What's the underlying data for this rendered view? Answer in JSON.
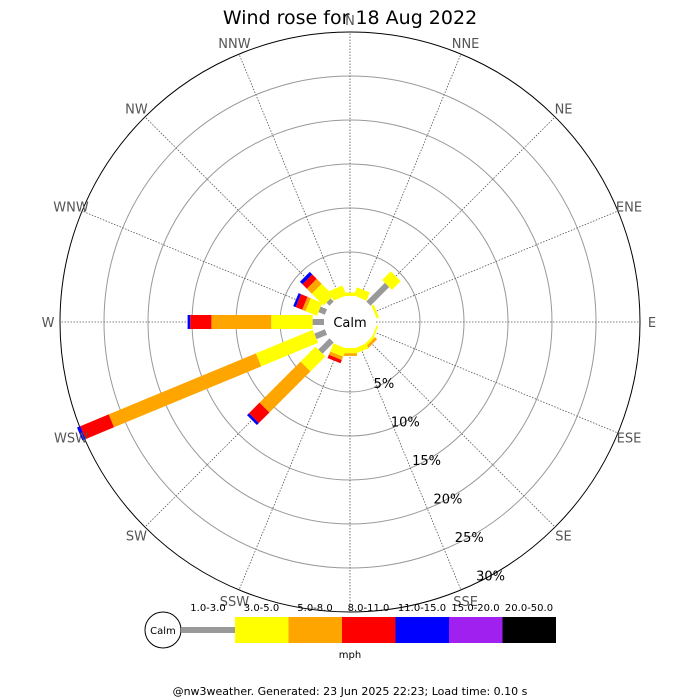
{
  "chart_data": {
    "type": "wind-rose",
    "title": "Wind rose for 18 Aug 2022",
    "center_label": "Calm",
    "directions": [
      "N",
      "NNE",
      "NE",
      "ENE",
      "E",
      "ESE",
      "SE",
      "SSE",
      "S",
      "SSW",
      "SW",
      "WSW",
      "W",
      "WNW",
      "NW",
      "NNW"
    ],
    "ring_labels": [
      "5%",
      "10%",
      "15%",
      "20%",
      "25%",
      "30%"
    ],
    "rmax_percent": 30,
    "speed_bins": [
      {
        "label": "1.0-3.0",
        "color": "#999999"
      },
      {
        "label": "3.0-5.0",
        "color": "#ffff00"
      },
      {
        "label": "5.0-8.0",
        "color": "#ffa500"
      },
      {
        "label": "8.0-11.0",
        "color": "#ff0000"
      },
      {
        "label": "11.0-15.0",
        "color": "#0000ff"
      },
      {
        "label": "15.0-20.0",
        "color": "#a020f0"
      },
      {
        "label": "20.0-50.0",
        "color": "#000000"
      }
    ],
    "units": "mph",
    "series": [
      {
        "direction": "N",
        "values": [
          0.0,
          0.4,
          0.0,
          0.0,
          0.0,
          0.0,
          0.0
        ]
      },
      {
        "direction": "NNE",
        "values": [
          0.0,
          1.0,
          0.0,
          0.0,
          0.0,
          0.0,
          0.0
        ]
      },
      {
        "direction": "NE",
        "values": [
          3.0,
          1.4,
          0.0,
          0.0,
          0.0,
          0.0,
          0.0
        ]
      },
      {
        "direction": "ENE",
        "values": [
          0.0,
          0.3,
          0.0,
          0.0,
          0.0,
          0.0,
          0.0
        ]
      },
      {
        "direction": "E",
        "values": [
          0.0,
          0.0,
          0.0,
          0.0,
          0.0,
          0.0,
          0.0
        ]
      },
      {
        "direction": "ESE",
        "values": [
          0.0,
          0.2,
          0.0,
          0.0,
          0.0,
          0.0,
          0.0
        ]
      },
      {
        "direction": "SE",
        "values": [
          0.0,
          0.3,
          0.3,
          0.0,
          0.0,
          0.0,
          0.0
        ]
      },
      {
        "direction": "SSE",
        "values": [
          0.0,
          0.6,
          0.0,
          0.0,
          0.0,
          0.0,
          0.0
        ]
      },
      {
        "direction": "S",
        "values": [
          0.0,
          0.6,
          0.3,
          0.0,
          0.0,
          0.0,
          0.0
        ]
      },
      {
        "direction": "SSW",
        "values": [
          0.0,
          1.0,
          0.4,
          0.4,
          0.0,
          0.0,
          0.0
        ]
      },
      {
        "direction": "SW",
        "values": [
          1.8,
          2.4,
          6.6,
          1.7,
          0.3,
          0.0,
          0.0
        ]
      },
      {
        "direction": "WSW",
        "values": [
          1.3,
          7.0,
          18.1,
          3.5,
          0.4,
          0.0,
          0.0
        ]
      },
      {
        "direction": "W",
        "values": [
          1.3,
          4.7,
          6.8,
          2.4,
          0.3,
          0.0,
          0.0
        ]
      },
      {
        "direction": "WNW",
        "values": [
          0.8,
          1.4,
          0.4,
          0.8,
          0.3,
          0.0,
          0.0
        ]
      },
      {
        "direction": "NW",
        "values": [
          0.5,
          1.9,
          0.8,
          0.7,
          0.4,
          0.0,
          0.0
        ]
      },
      {
        "direction": "NNW",
        "values": [
          0.0,
          1.2,
          0.0,
          0.0,
          0.0,
          0.0,
          0.0
        ]
      }
    ]
  },
  "footer": "@nw3weather. Generated: 23 Jun 2025 22:23; Load time: 0.10 s"
}
